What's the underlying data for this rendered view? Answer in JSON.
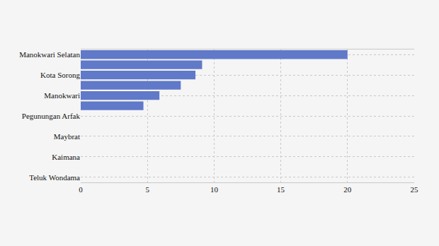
{
  "chart_data": {
    "type": "bar",
    "orientation": "horizontal",
    "categories": [
      "Manokwari Selatan",
      null,
      "Kota Sorong",
      null,
      "Manokwari",
      null,
      "Pegunungan Arfak",
      null,
      "Maybrat",
      null,
      "Kaimana",
      null,
      "Teluk Wondama"
    ],
    "values": [
      20,
      9.1,
      8.6,
      7.5,
      5.9,
      4.7,
      0,
      0,
      0,
      0,
      0,
      0,
      0
    ],
    "color": "#6079c8",
    "xlim": [
      0,
      25
    ],
    "xticks": [
      0,
      5,
      10,
      15,
      20,
      25
    ],
    "grid": true
  }
}
